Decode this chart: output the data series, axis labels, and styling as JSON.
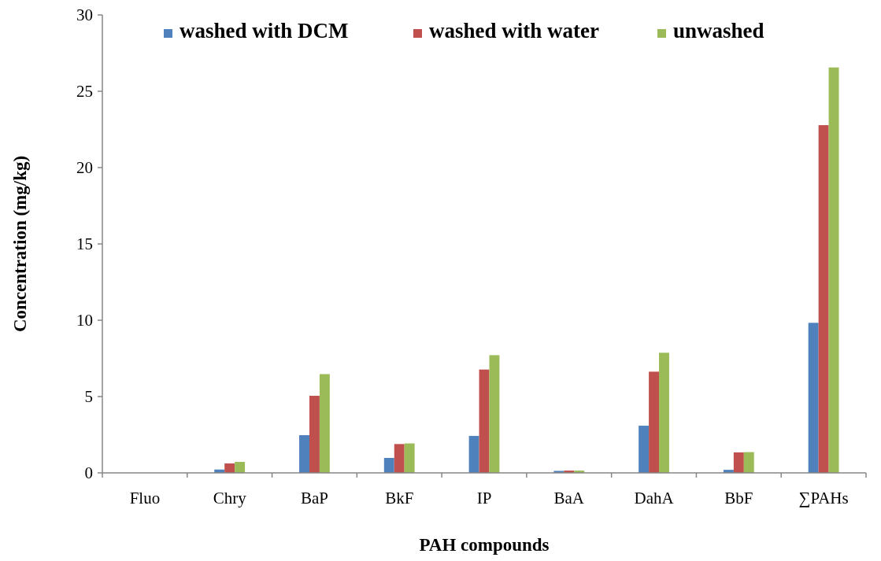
{
  "chart_data": {
    "type": "bar",
    "xlabel": "PAH compounds",
    "ylabel": "Concentration (mg/kg)",
    "categories": [
      "Fluo",
      "Chry",
      "BaP",
      "BkF",
      "IP",
      "BaA",
      "DahA",
      "BbF",
      "∑PAHs"
    ],
    "series": [
      {
        "name": "washed with DCM",
        "color": "#4f81bd",
        "values": [
          0,
          0.22,
          2.47,
          0.98,
          2.42,
          0.13,
          3.09,
          0.2,
          9.83
        ]
      },
      {
        "name": "washed with water",
        "color": "#c0504d",
        "values": [
          0,
          0.62,
          5.05,
          1.89,
          6.77,
          0.15,
          6.63,
          1.34,
          22.78
        ]
      },
      {
        "name": "unwashed",
        "color": "#9bbb59",
        "values": [
          0,
          0.72,
          6.47,
          1.93,
          7.71,
          0.15,
          7.87,
          1.36,
          26.56
        ]
      }
    ],
    "ylim": [
      0,
      30
    ],
    "yticks": [
      0,
      5,
      10,
      15,
      20,
      25,
      30
    ],
    "grid": false,
    "legend": "top"
  }
}
